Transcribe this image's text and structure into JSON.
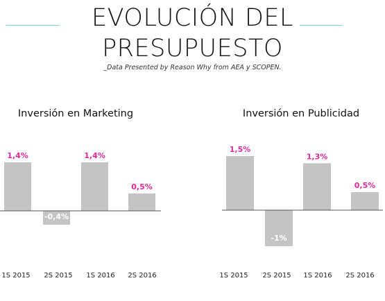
{
  "header": {
    "title_line1": "EVOLUCIÓN DEL",
    "title_line2": "PRESUPUESTO",
    "subtitle": "_Data Presented by Reason Why from AEA y SCOPEN."
  },
  "colors": {
    "bar": "#c4c4c4",
    "positive_label": "#e8289a",
    "negative_label": "#ffffff",
    "decoration": "#7fd0e8"
  },
  "chart_data": [
    {
      "type": "bar",
      "title": "Inversión en Marketing",
      "categories": [
        "1S 2015",
        "2S 2015",
        "1S 2016",
        "2S 2016"
      ],
      "values": [
        1.4,
        -0.4,
        1.4,
        0.5
      ],
      "value_labels": [
        "1,4%",
        "-0,4%",
        "1,4%",
        "0,5%"
      ],
      "ylim": [
        -0.5,
        1.5
      ]
    },
    {
      "type": "bar",
      "title": "Inversión en Publicidad",
      "categories": [
        "1S 2015",
        "2S 2015",
        "1S 2016",
        "2S 2016"
      ],
      "values": [
        1.5,
        -1,
        1.3,
        0.5
      ],
      "value_labels": [
        "1,5%",
        "-1%",
        "1,3%",
        "0,5%"
      ],
      "ylim": [
        -1,
        1.5
      ]
    }
  ]
}
